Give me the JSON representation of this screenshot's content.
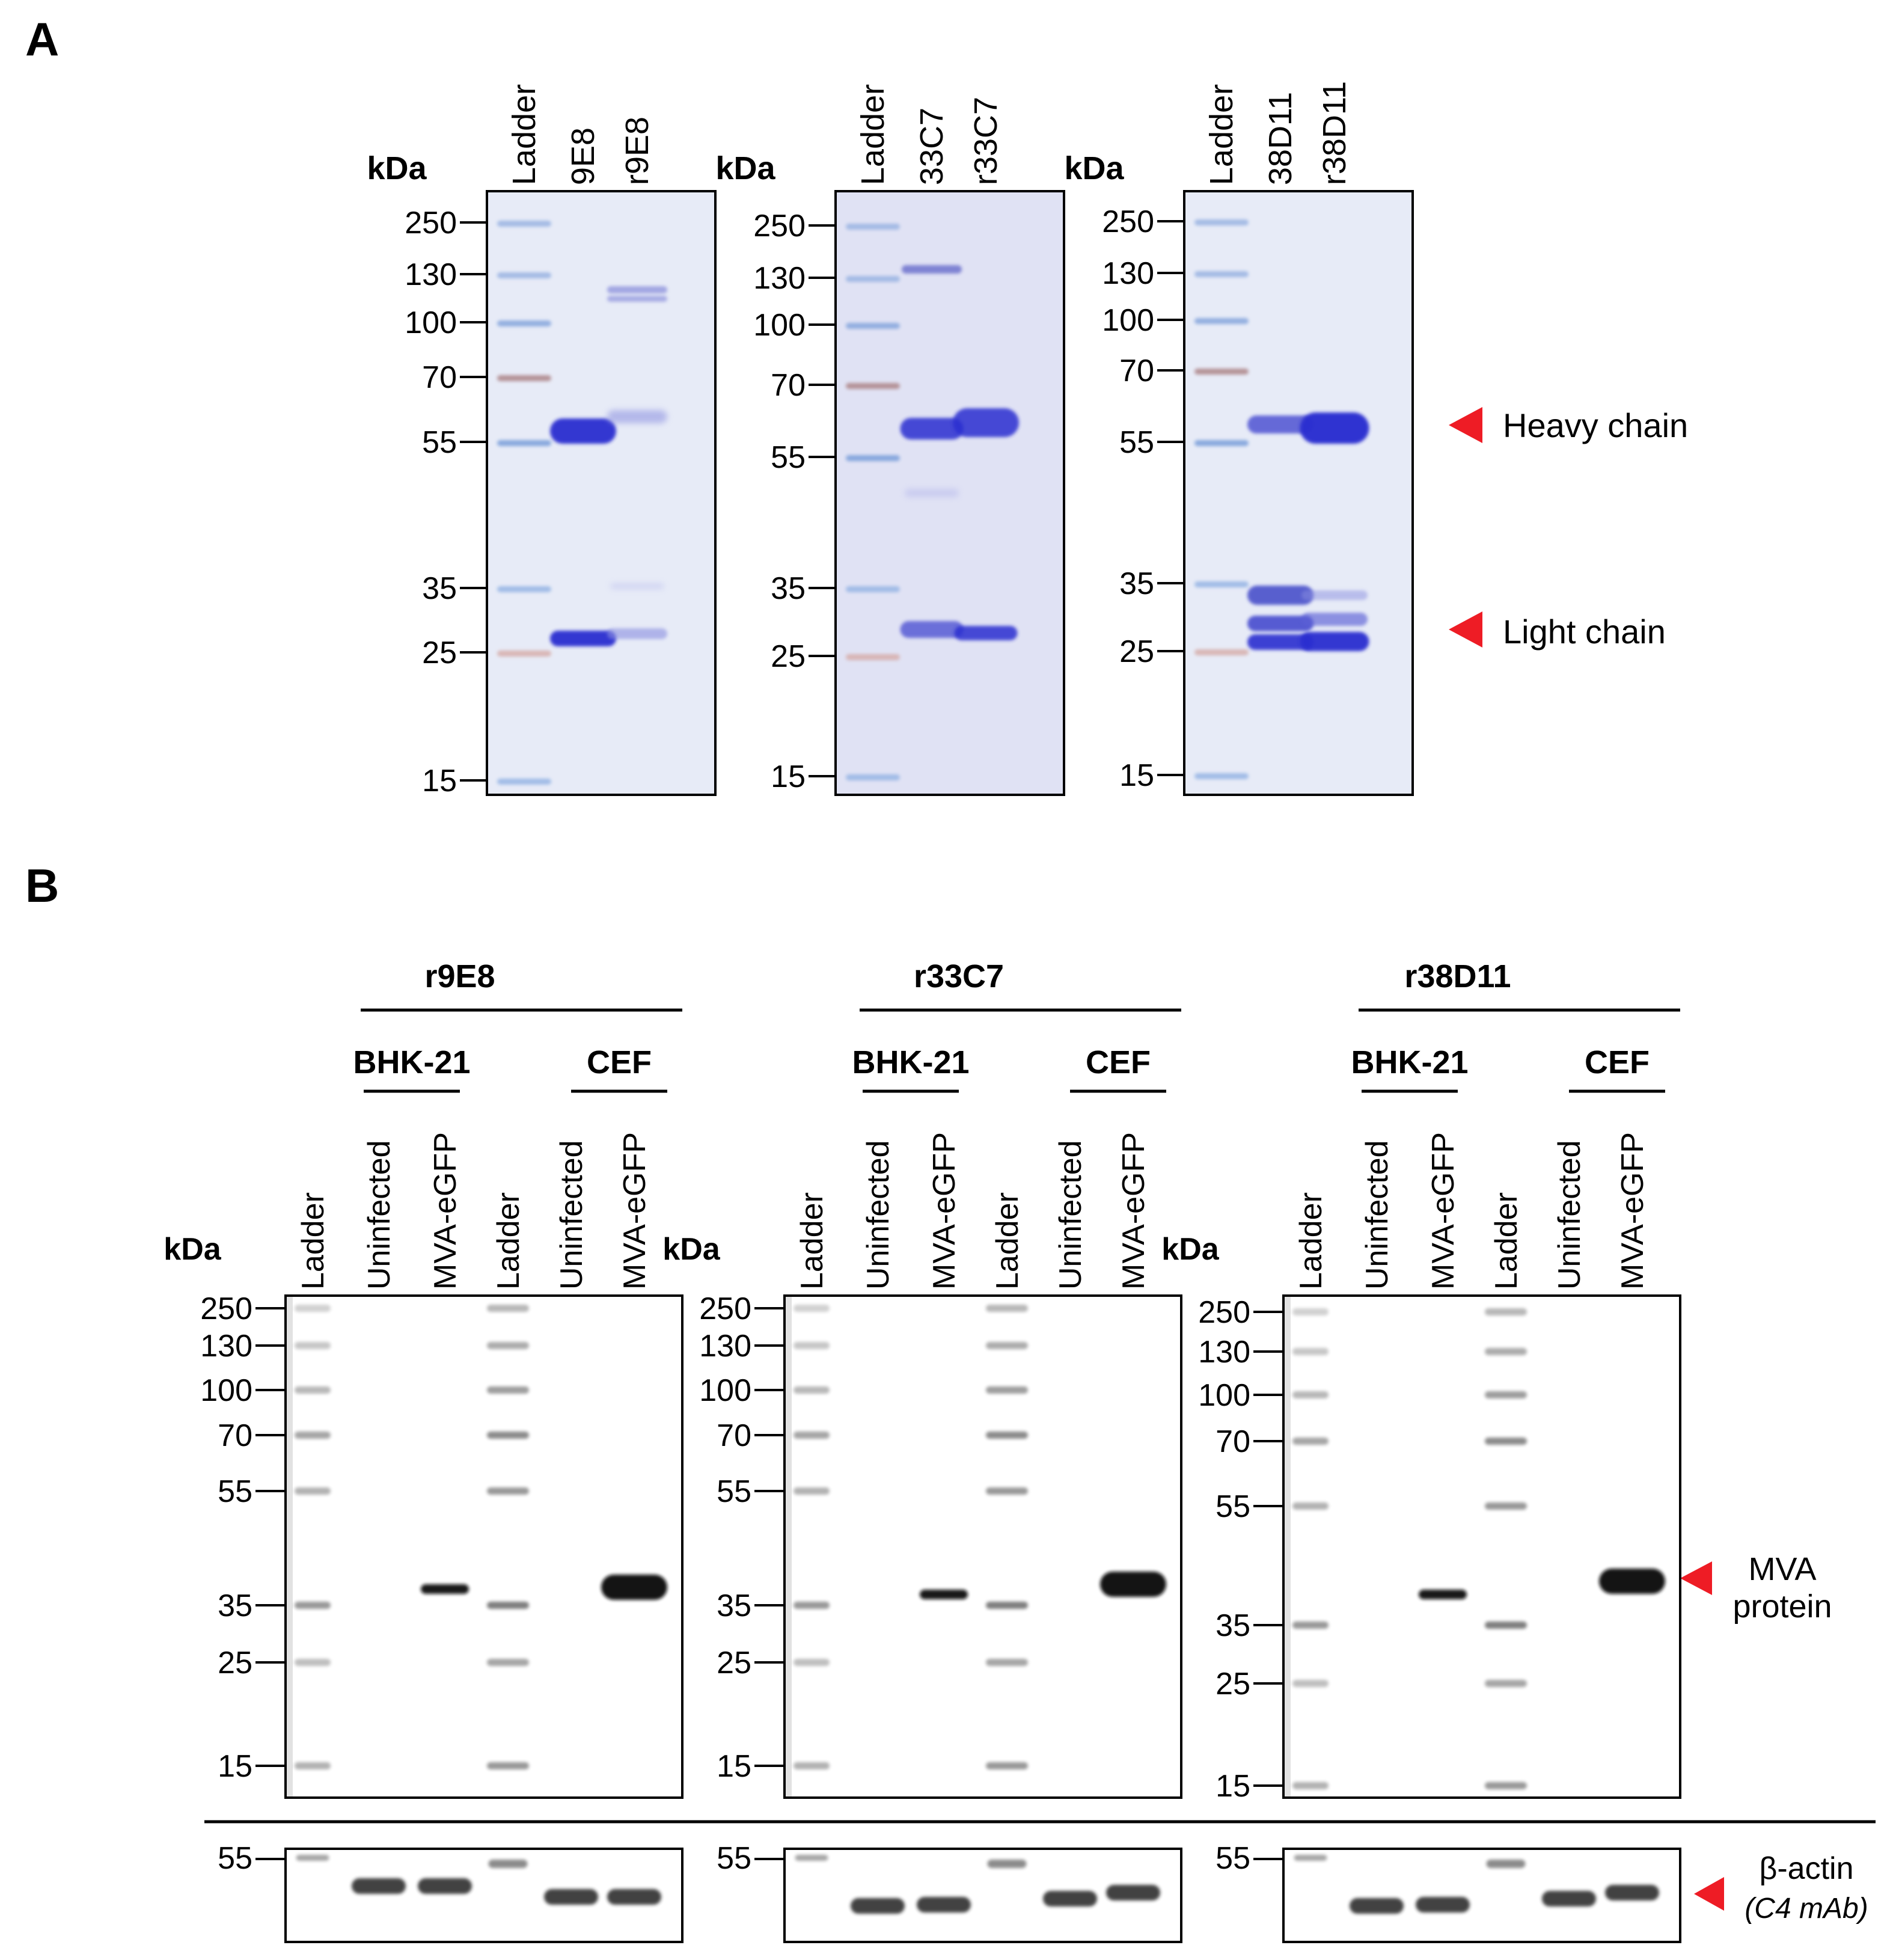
{
  "panel_a": {
    "label": "A",
    "kda_label": "kDa",
    "gels": [
      {
        "lanes": [
          "Ladder",
          "9E8",
          "r9E8"
        ],
        "markers": [
          "250",
          "130",
          "100",
          "70",
          "55",
          "35",
          "25",
          "15"
        ]
      },
      {
        "lanes": [
          "Ladder",
          "33C7",
          "r33C7"
        ],
        "markers": [
          "250",
          "130",
          "100",
          "70",
          "55",
          "35",
          "25",
          "15"
        ]
      },
      {
        "lanes": [
          "Ladder",
          "38D11",
          "r38D11"
        ],
        "markers": [
          "250",
          "130",
          "100",
          "70",
          "55",
          "35",
          "25",
          "15"
        ]
      }
    ],
    "annotations": {
      "heavy": "Heavy chain",
      "light": "Light chain"
    }
  },
  "panel_b": {
    "label": "B",
    "kda_label": "kDa",
    "blots": [
      {
        "title": "r9E8",
        "groups": [
          "BHK-21",
          "CEF"
        ],
        "lanes": [
          "Ladder",
          "Uninfected",
          "MVA-eGFP",
          "Ladder",
          "Uninfected",
          "MVA-eGFP"
        ],
        "markers": [
          "250",
          "130",
          "100",
          "70",
          "55",
          "35",
          "25",
          "15"
        ],
        "actin_marker": "55"
      },
      {
        "title": "r33C7",
        "groups": [
          "BHK-21",
          "CEF"
        ],
        "lanes": [
          "Ladder",
          "Uninfected",
          "MVA-eGFP",
          "Ladder",
          "Uninfected",
          "MVA-eGFP"
        ],
        "markers": [
          "250",
          "130",
          "100",
          "70",
          "55",
          "35",
          "25",
          "15"
        ],
        "actin_marker": "55"
      },
      {
        "title": "r38D11",
        "groups": [
          "BHK-21",
          "CEF"
        ],
        "lanes": [
          "Ladder",
          "Uninfected",
          "MVA-eGFP",
          "Ladder",
          "Uninfected",
          "MVA-eGFP"
        ],
        "markers": [
          "250",
          "130",
          "100",
          "70",
          "55",
          "35",
          "25",
          "15"
        ],
        "actin_marker": "55"
      }
    ],
    "annotations": {
      "mva_line1": "MVA",
      "mva_line2": "protein",
      "actin_line1": "β-actin",
      "actin_line2": "(C4 mAb)"
    }
  },
  "colors": {
    "annotation_arrow": "#ee1c25",
    "coomassie_band": "#2a2fd0",
    "gel_background": "#dfe4f5",
    "blot_band": "#111111"
  }
}
